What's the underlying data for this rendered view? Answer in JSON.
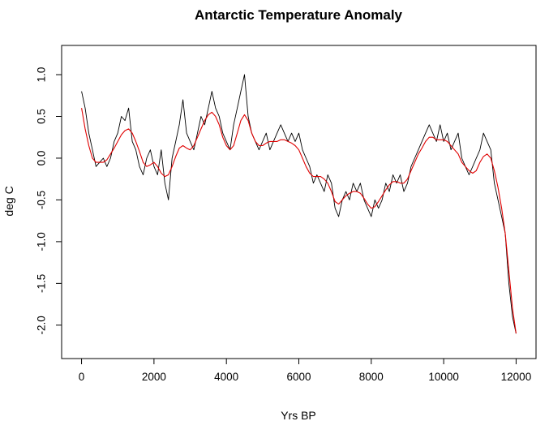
{
  "chart_data": {
    "type": "line",
    "title": "Antarctic Temperature Anomaly",
    "xlabel": "Yrs BP",
    "ylabel": "deg C",
    "xlim": [
      -550,
      12550
    ],
    "ylim": [
      -2.4,
      1.35
    ],
    "x_ticks": [
      0,
      2000,
      4000,
      6000,
      8000,
      10000,
      12000
    ],
    "x_tick_labels": [
      "0",
      "2000",
      "4000",
      "6000",
      "8000",
      "10000",
      "12000"
    ],
    "y_ticks": [
      -2.0,
      -1.5,
      -1.0,
      -0.5,
      0.0,
      0.5,
      1.0
    ],
    "y_tick_labels": [
      "-2.0",
      "-1.5",
      "-1.0",
      "-0.5",
      "0.0",
      "0.5",
      "1.0"
    ],
    "grid": false,
    "legend": "none",
    "series": [
      {
        "color": "#000000",
        "style": "raw",
        "x": [
          0,
          100,
          200,
          300,
          400,
          500,
          600,
          700,
          800,
          900,
          1000,
          1100,
          1200,
          1300,
          1400,
          1500,
          1600,
          1700,
          1800,
          1900,
          2000,
          2100,
          2200,
          2300,
          2400,
          2500,
          2600,
          2700,
          2800,
          2900,
          3000,
          3100,
          3200,
          3300,
          3400,
          3500,
          3600,
          3700,
          3800,
          3900,
          4000,
          4100,
          4200,
          4300,
          4400,
          4500,
          4600,
          4700,
          4800,
          4900,
          5000,
          5100,
          5200,
          5300,
          5400,
          5500,
          5600,
          5700,
          5800,
          5900,
          6000,
          6100,
          6200,
          6300,
          6400,
          6500,
          6600,
          6700,
          6800,
          6900,
          7000,
          7100,
          7200,
          7300,
          7400,
          7500,
          7600,
          7700,
          7800,
          7900,
          8000,
          8100,
          8200,
          8300,
          8400,
          8500,
          8600,
          8700,
          8800,
          8900,
          9000,
          9100,
          9200,
          9300,
          9400,
          9500,
          9600,
          9700,
          9800,
          9900,
          10000,
          10100,
          10200,
          10300,
          10400,
          10500,
          10600,
          10700,
          10800,
          10900,
          11000,
          11100,
          11200,
          11300,
          11400,
          11500,
          11600,
          11700,
          11800,
          11900,
          12000
        ],
        "y": [
          0.8,
          0.6,
          0.3,
          0.1,
          -0.1,
          -0.05,
          0.0,
          -0.1,
          0.0,
          0.2,
          0.3,
          0.5,
          0.45,
          0.6,
          0.2,
          0.1,
          -0.1,
          -0.2,
          0.0,
          0.1,
          -0.1,
          -0.2,
          0.1,
          -0.3,
          -0.5,
          0.0,
          0.2,
          0.4,
          0.7,
          0.3,
          0.2,
          0.1,
          0.3,
          0.5,
          0.4,
          0.6,
          0.8,
          0.6,
          0.5,
          0.3,
          0.2,
          0.1,
          0.4,
          0.6,
          0.8,
          1.0,
          0.5,
          0.3,
          0.2,
          0.1,
          0.2,
          0.3,
          0.1,
          0.2,
          0.3,
          0.4,
          0.3,
          0.2,
          0.3,
          0.2,
          0.3,
          0.1,
          0.0,
          -0.1,
          -0.3,
          -0.2,
          -0.3,
          -0.4,
          -0.2,
          -0.3,
          -0.6,
          -0.7,
          -0.5,
          -0.4,
          -0.5,
          -0.3,
          -0.4,
          -0.3,
          -0.5,
          -0.6,
          -0.7,
          -0.5,
          -0.6,
          -0.5,
          -0.3,
          -0.4,
          -0.2,
          -0.3,
          -0.2,
          -0.4,
          -0.3,
          -0.1,
          0.0,
          0.1,
          0.2,
          0.3,
          0.4,
          0.3,
          0.2,
          0.4,
          0.2,
          0.3,
          0.1,
          0.2,
          0.3,
          0.0,
          -0.1,
          -0.2,
          -0.1,
          0.0,
          0.1,
          0.3,
          0.2,
          0.1,
          -0.3,
          -0.5,
          -0.7,
          -0.9,
          -1.5,
          -1.9,
          -2.1
        ]
      },
      {
        "color": "#e00000",
        "style": "smoothed",
        "x": [
          0,
          100,
          200,
          300,
          400,
          500,
          600,
          700,
          800,
          900,
          1000,
          1100,
          1200,
          1300,
          1400,
          1500,
          1600,
          1700,
          1800,
          1900,
          2000,
          2100,
          2200,
          2300,
          2400,
          2500,
          2600,
          2700,
          2800,
          2900,
          3000,
          3100,
          3200,
          3300,
          3400,
          3500,
          3600,
          3700,
          3800,
          3900,
          4000,
          4100,
          4200,
          4300,
          4400,
          4500,
          4600,
          4700,
          4800,
          4900,
          5000,
          5100,
          5200,
          5300,
          5400,
          5500,
          5600,
          5700,
          5800,
          5900,
          6000,
          6100,
          6200,
          6300,
          6400,
          6500,
          6600,
          6700,
          6800,
          6900,
          7000,
          7100,
          7200,
          7300,
          7400,
          7500,
          7600,
          7700,
          7800,
          7900,
          8000,
          8100,
          8200,
          8300,
          8400,
          8500,
          8600,
          8700,
          8800,
          8900,
          9000,
          9100,
          9200,
          9300,
          9400,
          9500,
          9600,
          9700,
          9800,
          9900,
          10000,
          10100,
          10200,
          10300,
          10400,
          10500,
          10600,
          10700,
          10800,
          10900,
          11000,
          11100,
          11200,
          11300,
          11400,
          11500,
          11600,
          11700,
          11800,
          11900,
          12000
        ],
        "y": [
          0.6,
          0.35,
          0.15,
          0.0,
          -0.05,
          -0.05,
          -0.05,
          -0.02,
          0.05,
          0.12,
          0.2,
          0.28,
          0.33,
          0.35,
          0.3,
          0.2,
          0.08,
          -0.05,
          -0.1,
          -0.08,
          -0.05,
          -0.1,
          -0.18,
          -0.22,
          -0.2,
          -0.1,
          0.02,
          0.12,
          0.15,
          0.12,
          0.1,
          0.15,
          0.25,
          0.35,
          0.45,
          0.52,
          0.55,
          0.5,
          0.4,
          0.25,
          0.15,
          0.1,
          0.15,
          0.3,
          0.45,
          0.52,
          0.45,
          0.3,
          0.2,
          0.15,
          0.15,
          0.18,
          0.2,
          0.2,
          0.2,
          0.22,
          0.22,
          0.2,
          0.18,
          0.15,
          0.1,
          0.0,
          -0.1,
          -0.18,
          -0.22,
          -0.22,
          -0.22,
          -0.25,
          -0.3,
          -0.4,
          -0.52,
          -0.55,
          -0.5,
          -0.45,
          -0.42,
          -0.4,
          -0.4,
          -0.42,
          -0.48,
          -0.55,
          -0.6,
          -0.58,
          -0.52,
          -0.45,
          -0.38,
          -0.32,
          -0.28,
          -0.28,
          -0.3,
          -0.3,
          -0.25,
          -0.15,
          -0.05,
          0.05,
          0.12,
          0.2,
          0.25,
          0.25,
          0.22,
          0.22,
          0.22,
          0.2,
          0.15,
          0.1,
          0.05,
          -0.05,
          -0.1,
          -0.15,
          -0.18,
          -0.15,
          -0.05,
          0.02,
          0.05,
          0.0,
          -0.15,
          -0.35,
          -0.6,
          -0.9,
          -1.35,
          -1.8,
          -2.1
        ]
      }
    ]
  }
}
